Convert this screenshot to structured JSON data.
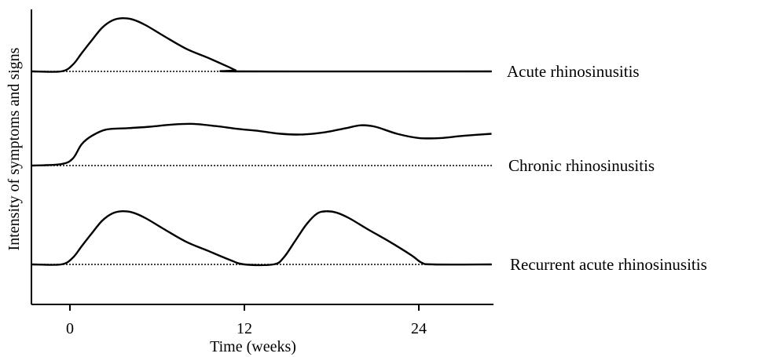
{
  "chart_data": {
    "type": "line",
    "title": "",
    "xlabel": "Time (weeks)",
    "ylabel": "Intensity of symptoms and signs",
    "xlim": [
      -2.6,
      29
    ],
    "x_ticks": [
      0,
      12,
      24
    ],
    "x_tick_labels": [
      "0",
      "12",
      "24"
    ],
    "grid": false,
    "legend": "none",
    "curves": [
      {
        "name": "Acute rhinosinusitis",
        "baseline_style": "dotted",
        "points": [
          [
            -2.6,
            0
          ],
          [
            -0.6,
            0
          ],
          [
            0.2,
            0.12
          ],
          [
            0.8,
            0.32
          ],
          [
            1.5,
            0.55
          ],
          [
            2.2,
            0.77
          ],
          [
            2.9,
            0.9
          ],
          [
            3.5,
            0.94
          ],
          [
            4.3,
            0.92
          ],
          [
            5.2,
            0.82
          ],
          [
            6.5,
            0.62
          ],
          [
            8.0,
            0.4
          ],
          [
            9.5,
            0.24
          ],
          [
            10.9,
            0.08
          ],
          [
            11.4,
            0.02
          ],
          [
            11.7,
            0
          ],
          [
            29,
            0
          ]
        ]
      },
      {
        "name": "Chronic rhinosinusitis",
        "baseline_style": "dotted",
        "points": [
          [
            -2.6,
            0
          ],
          [
            -0.6,
            0.02
          ],
          [
            0.2,
            0.1
          ],
          [
            0.8,
            0.3
          ],
          [
            1.5,
            0.42
          ],
          [
            2.5,
            0.51
          ],
          [
            4.0,
            0.53
          ],
          [
            5.5,
            0.55
          ],
          [
            7.0,
            0.58
          ],
          [
            8.5,
            0.59
          ],
          [
            10.0,
            0.56
          ],
          [
            11.5,
            0.52
          ],
          [
            13.0,
            0.49
          ],
          [
            14.5,
            0.45
          ],
          [
            16.0,
            0.44
          ],
          [
            17.5,
            0.47
          ],
          [
            19.0,
            0.53
          ],
          [
            20.0,
            0.57
          ],
          [
            21.0,
            0.55
          ],
          [
            22.5,
            0.45
          ],
          [
            24.0,
            0.39
          ],
          [
            25.5,
            0.39
          ],
          [
            27.0,
            0.42
          ],
          [
            29,
            0.45
          ]
        ]
      },
      {
        "name": "Recurrent acute rhinosinusitis",
        "baseline_style": "dotted",
        "points": [
          [
            -2.6,
            0
          ],
          [
            -0.6,
            0
          ],
          [
            0.2,
            0.12
          ],
          [
            0.8,
            0.32
          ],
          [
            1.5,
            0.55
          ],
          [
            2.2,
            0.77
          ],
          [
            2.9,
            0.9
          ],
          [
            3.5,
            0.94
          ],
          [
            4.3,
            0.92
          ],
          [
            5.2,
            0.82
          ],
          [
            6.5,
            0.62
          ],
          [
            8.0,
            0.4
          ],
          [
            9.5,
            0.24
          ],
          [
            11.0,
            0.08
          ],
          [
            12.0,
            0
          ],
          [
            14.0,
            0
          ],
          [
            14.7,
            0.12
          ],
          [
            15.5,
            0.42
          ],
          [
            16.3,
            0.72
          ],
          [
            17.0,
            0.9
          ],
          [
            17.6,
            0.94
          ],
          [
            18.3,
            0.92
          ],
          [
            19.2,
            0.82
          ],
          [
            20.5,
            0.62
          ],
          [
            22.0,
            0.4
          ],
          [
            23.5,
            0.16
          ],
          [
            24.2,
            0.03
          ],
          [
            25.0,
            0
          ],
          [
            29,
            0
          ]
        ]
      }
    ]
  }
}
